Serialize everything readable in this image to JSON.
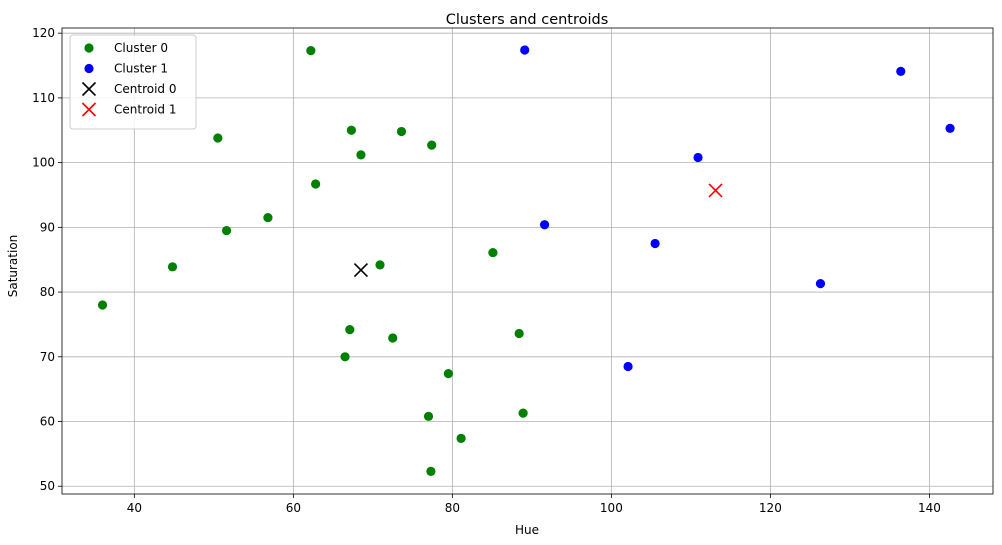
{
  "chart_data": {
    "type": "scatter",
    "title": "Clusters and centroids",
    "xlabel": "Hue",
    "ylabel": "Saturation",
    "xlim": [
      30.9,
      148.0
    ],
    "ylim": [
      48.8,
      120.8
    ],
    "xticks": [
      40,
      60,
      80,
      100,
      120,
      140
    ],
    "yticks": [
      50,
      60,
      70,
      80,
      90,
      100,
      110,
      120
    ],
    "grid": true,
    "legend_position": "upper-left",
    "series": [
      {
        "name": "Cluster 0",
        "marker": "circle",
        "color": "#008000",
        "points": [
          [
            62.2,
            117.3
          ],
          [
            50.5,
            103.8
          ],
          [
            67.3,
            105.0
          ],
          [
            73.6,
            104.8
          ],
          [
            77.4,
            102.7
          ],
          [
            68.5,
            101.2
          ],
          [
            62.8,
            96.7
          ],
          [
            56.8,
            91.5
          ],
          [
            51.6,
            89.5
          ],
          [
            44.8,
            83.9
          ],
          [
            36.0,
            78.0
          ],
          [
            70.9,
            84.2
          ],
          [
            85.1,
            86.1
          ],
          [
            67.1,
            74.2
          ],
          [
            72.5,
            72.9
          ],
          [
            88.4,
            73.6
          ],
          [
            66.5,
            70.0
          ],
          [
            79.5,
            67.4
          ],
          [
            77.0,
            60.8
          ],
          [
            88.9,
            61.3
          ],
          [
            81.1,
            57.4
          ],
          [
            77.3,
            52.3
          ]
        ]
      },
      {
        "name": "Cluster 1",
        "marker": "circle",
        "color": "#0000ff",
        "points": [
          [
            89.1,
            117.4
          ],
          [
            136.4,
            114.1
          ],
          [
            142.6,
            105.3
          ],
          [
            110.9,
            100.8
          ],
          [
            91.6,
            90.4
          ],
          [
            105.5,
            87.5
          ],
          [
            126.3,
            81.3
          ],
          [
            102.1,
            68.5
          ]
        ]
      },
      {
        "name": "Centroid 0",
        "marker": "x",
        "color": "#000000",
        "points": [
          [
            68.5,
            83.4
          ]
        ]
      },
      {
        "name": "Centroid 1",
        "marker": "x",
        "color": "#ff0000",
        "points": [
          [
            113.1,
            95.7
          ]
        ]
      }
    ]
  }
}
